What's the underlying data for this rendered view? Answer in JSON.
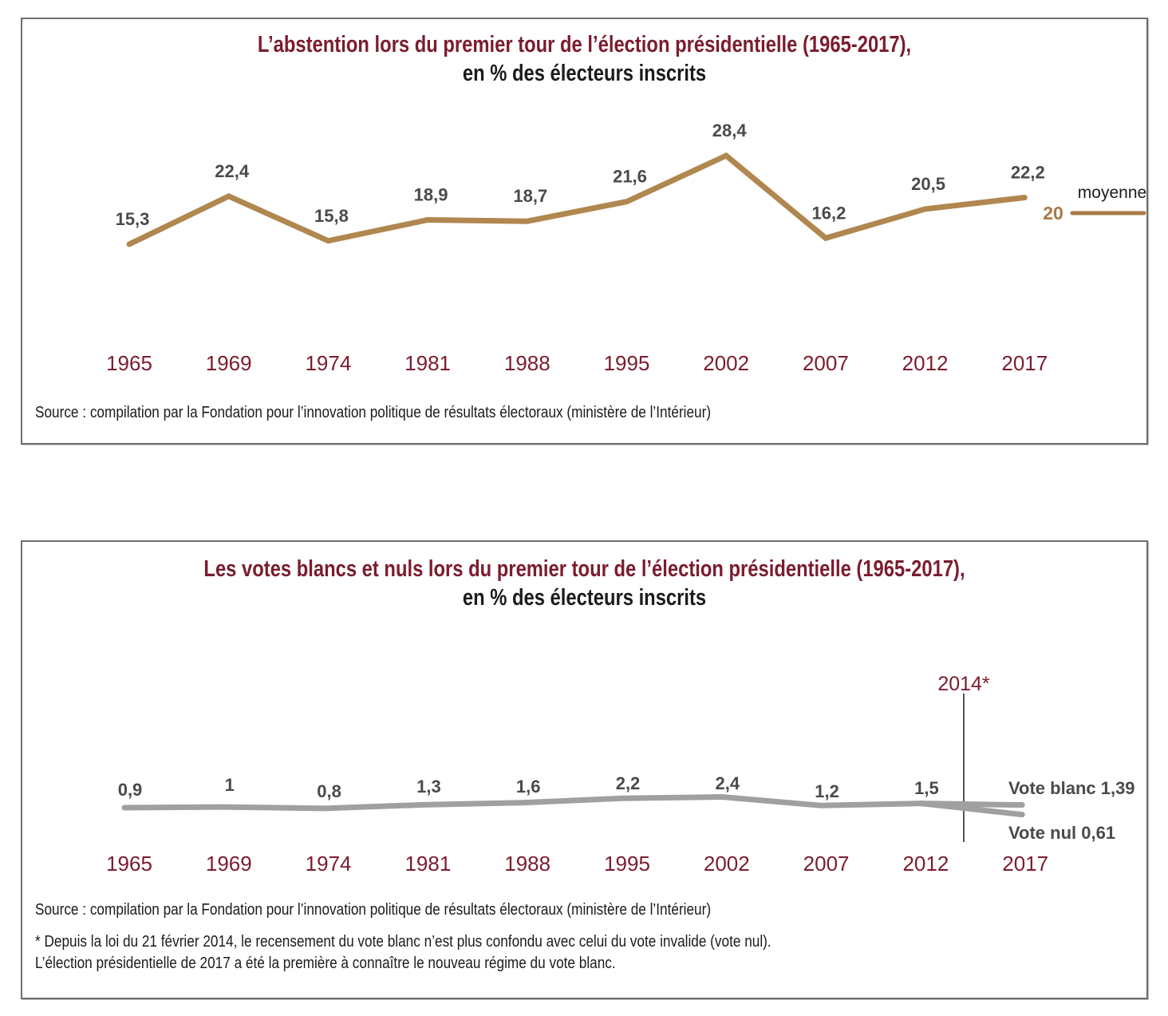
{
  "chart_data": [
    {
      "type": "line",
      "title": "L’abstention lors du premier tour de l’élection présidentielle (1965-2017),",
      "subtitle": "en % des électeurs inscrits",
      "xlabel": "",
      "ylabel": "",
      "categories": [
        "1965",
        "1969",
        "1974",
        "1981",
        "1988",
        "1995",
        "2002",
        "2007",
        "2012",
        "2017"
      ],
      "series": [
        {
          "name": "Abstention",
          "color": "#b0874f",
          "values": [
            15.3,
            22.4,
            15.8,
            18.9,
            18.7,
            21.6,
            28.4,
            16.2,
            20.5,
            22.2
          ],
          "labels": [
            "15,3",
            "22,4",
            "15,8",
            "18,9",
            "18,7",
            "21,6",
            "28,4",
            "16,2",
            "20,5",
            "22,2"
          ]
        }
      ],
      "reference_line": {
        "name": "moyenne",
        "value": 20,
        "label": "20",
        "color": "#a87a45"
      },
      "grid": false,
      "source": "Source : compilation par la Fondation pour l’innovation politique de résultats électoraux (ministère de l’Intérieur)"
    },
    {
      "type": "line",
      "title": "Les votes blancs et nuls lors du premier tour de l’élection présidentielle (1965-2017),",
      "subtitle": "en % des électeurs inscrits",
      "xlabel": "",
      "ylabel": "",
      "categories": [
        "1965",
        "1969",
        "1974",
        "1981",
        "1988",
        "1995",
        "2002",
        "2007",
        "2012",
        "2017"
      ],
      "series": [
        {
          "name": "Votes blancs et nuls",
          "color": "#a0a0a0",
          "values": [
            0.9,
            1.0,
            0.8,
            1.3,
            1.6,
            2.2,
            2.4,
            1.2,
            1.5,
            null
          ],
          "labels": [
            "0,9",
            "1",
            "0,8",
            "1,3",
            "1,6",
            "2,2",
            "2,4",
            "1,2",
            "1,5",
            ""
          ]
        },
        {
          "name": "Vote blanc",
          "color": "#a0a0a0",
          "values": [
            null,
            null,
            null,
            null,
            null,
            null,
            null,
            null,
            1.5,
            1.39
          ],
          "end_label": "Vote blanc 1,39"
        },
        {
          "name": "Vote nul",
          "color": "#a0a0a0",
          "values": [
            null,
            null,
            null,
            null,
            null,
            null,
            null,
            null,
            1.5,
            0.61
          ],
          "end_label": "Vote nul 0,61"
        }
      ],
      "annotation": {
        "label": "2014*",
        "position": "between 2012 and 2017"
      },
      "grid": false,
      "source": "Source : compilation par la Fondation pour l’innovation politique de résultats électoraux (ministère de l’Intérieur)",
      "footnote_lines": [
        "* Depuis la loi du 21 février 2014, le recensement du vote blanc n’est plus confondu avec celui du vote invalide (vote nul).",
        "L’élection présidentielle de 2017 a été la première à connaître le nouveau régime du vote blanc."
      ]
    }
  ]
}
